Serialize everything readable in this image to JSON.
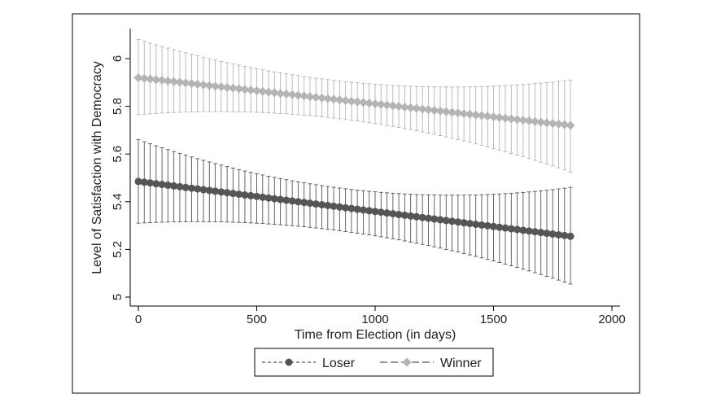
{
  "chart_data": {
    "type": "scatter",
    "title": "",
    "xlabel": "Time from Election (in days)",
    "ylabel": "Level of Satisfaction with Democracy",
    "xlim": [
      0,
      2000
    ],
    "ylim": [
      5,
      6.1
    ],
    "x_ticks": [
      0,
      500,
      1000,
      1500,
      2000
    ],
    "x_tick_labels": [
      "0",
      "500",
      "1000",
      "1500",
      "2000"
    ],
    "y_ticks": [
      5,
      5.2,
      5.4,
      5.6,
      5.8,
      6
    ],
    "y_tick_labels": [
      "5",
      "5.2",
      "5.4",
      "5.6",
      "5.8",
      "6"
    ],
    "grid": false,
    "legend_position": "bottom",
    "x_start": 0,
    "x_step": 25,
    "n_points": 74,
    "series": [
      {
        "name": "Loser",
        "color": "#555555",
        "marker": "circle",
        "line_style": "short-dash",
        "start": 5.485,
        "end": 5.255,
        "ci_upper_start": 5.66,
        "ci_upper_mid": 5.45,
        "ci_upper_end": 5.46,
        "ci_lower_start": 5.31,
        "ci_lower_mid": 5.27,
        "ci_lower_end": 5.055
      },
      {
        "name": "Winner",
        "color": "#b4b4b4",
        "marker": "diamond",
        "line_style": "long-dash",
        "start": 5.92,
        "end": 5.72,
        "ci_upper_start": 6.08,
        "ci_upper_mid": 5.9,
        "ci_upper_end": 5.91,
        "ci_lower_start": 5.765,
        "ci_lower_mid": 5.74,
        "ci_lower_end": 5.525
      }
    ]
  }
}
